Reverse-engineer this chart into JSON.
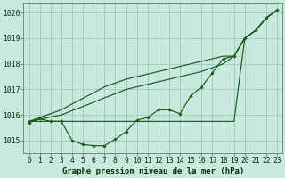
{
  "title": "Graphe pression niveau de la mer (hPa)",
  "background_color": "#c8e8e0",
  "grid_color": "#90c8b0",
  "line_color": "#1a5c1a",
  "xlim": [
    -0.5,
    23.5
  ],
  "ylim": [
    1014.5,
    1020.4
  ],
  "yticks": [
    1015,
    1016,
    1017,
    1018,
    1019,
    1020
  ],
  "xticks": [
    0,
    1,
    2,
    3,
    4,
    5,
    6,
    7,
    8,
    9,
    10,
    11,
    12,
    13,
    14,
    15,
    16,
    17,
    18,
    19,
    20,
    21,
    22,
    23
  ],
  "s_dip": [
    1015.7,
    1015.85,
    1015.75,
    1015.75,
    1015.0,
    1014.85,
    1014.8,
    1014.8,
    1015.05,
    1015.35,
    1015.8,
    1015.9,
    1016.2,
    1016.2,
    1016.05,
    1016.75,
    1017.1,
    1017.65,
    1018.2,
    1018.3,
    1019.0,
    1019.3,
    1019.8,
    1020.1
  ],
  "s_flat": [
    1015.75,
    1015.75,
    1015.75,
    1015.75,
    1015.75,
    1015.75,
    1015.75,
    1015.75,
    1015.75,
    1015.75,
    1015.75,
    1015.75,
    1015.75,
    1015.75,
    1015.75,
    1015.75,
    1015.75,
    1015.75,
    1015.75,
    1015.75,
    1019.0,
    1019.3,
    1019.8,
    1020.1
  ],
  "s_diag1": [
    1015.75,
    1015.83,
    1015.92,
    1016.0,
    1016.17,
    1016.33,
    1016.5,
    1016.67,
    1016.83,
    1017.0,
    1017.1,
    1017.2,
    1017.3,
    1017.4,
    1017.5,
    1017.6,
    1017.7,
    1017.85,
    1018.0,
    1018.3,
    1019.0,
    1019.3,
    1019.8,
    1020.1
  ],
  "s_diag2": [
    1015.75,
    1015.9,
    1016.05,
    1016.2,
    1016.43,
    1016.65,
    1016.87,
    1017.1,
    1017.25,
    1017.4,
    1017.5,
    1017.6,
    1017.7,
    1017.8,
    1017.9,
    1018.0,
    1018.1,
    1018.2,
    1018.3,
    1018.3,
    1019.0,
    1019.3,
    1019.8,
    1020.1
  ],
  "tick_fontsize": 5.8,
  "xlabel_fontsize": 6.5
}
